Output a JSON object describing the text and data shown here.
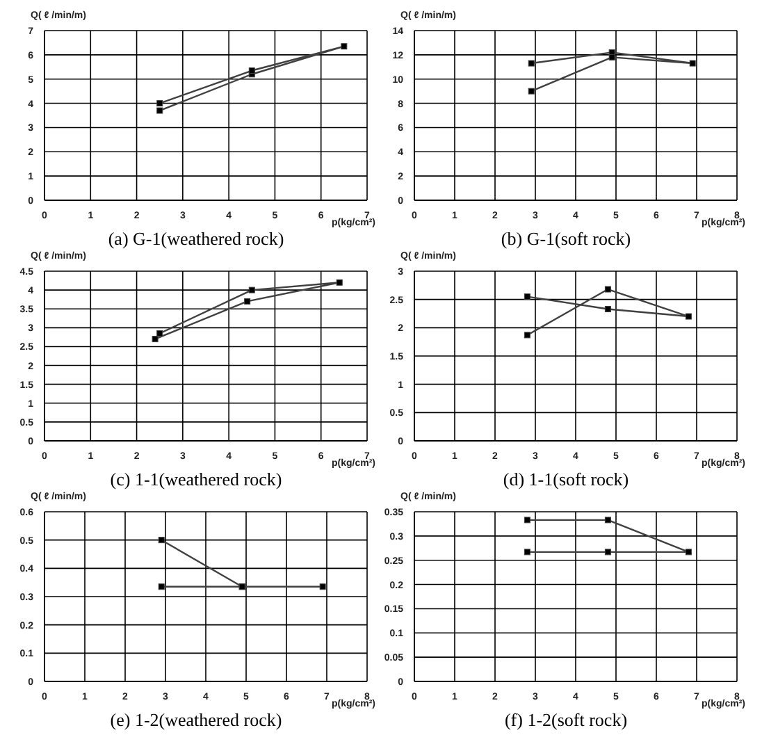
{
  "chart_data": [
    {
      "type": "line",
      "title": "(a)  G-1(weathered rock)",
      "xlabel": "p(kg/cm²)",
      "ylabel": "Q( ℓ /min/m)",
      "xlim": [
        0,
        7
      ],
      "xticks": [
        0,
        1,
        2,
        3,
        4,
        5,
        6,
        7
      ],
      "ylim": [
        0,
        7
      ],
      "yticks": [
        0,
        1,
        2,
        3,
        4,
        5,
        6,
        7
      ],
      "grid": true,
      "marker": "square",
      "line_style": "solid",
      "series": [
        {
          "color": "#404040",
          "x": [
            2.5,
            4.5,
            6.5,
            4.5,
            2.5
          ],
          "values": [
            3.7,
            5.2,
            6.35,
            5.35,
            4.0
          ]
        }
      ]
    },
    {
      "type": "line",
      "title": "(b)  G-1(soft rock)",
      "xlabel": "p(kg/cm²)",
      "ylabel": "Q( ℓ /min/m)",
      "xlim": [
        0,
        8
      ],
      "xticks": [
        0,
        1,
        2,
        3,
        4,
        5,
        6,
        7,
        8
      ],
      "ylim": [
        0,
        14
      ],
      "yticks": [
        0,
        2,
        4,
        6,
        8,
        10,
        12,
        14
      ],
      "grid": true,
      "marker": "square",
      "line_style": "solid",
      "series": [
        {
          "color": "#404040",
          "x": [
            2.9,
            4.9,
            6.9,
            4.9,
            2.9
          ],
          "values": [
            11.3,
            12.2,
            11.3,
            11.8,
            9.0
          ]
        }
      ]
    },
    {
      "type": "line",
      "title": "(c)  1-1(weathered rock)",
      "xlabel": "p(kg/cm²)",
      "ylabel": "Q( ℓ /min/m)",
      "xlim": [
        0,
        7
      ],
      "xticks": [
        0,
        1,
        2,
        3,
        4,
        5,
        6,
        7
      ],
      "ylim": [
        0,
        4.5
      ],
      "yticks": [
        0,
        0.5,
        1,
        1.5,
        2,
        2.5,
        3,
        3.5,
        4,
        4.5
      ],
      "grid": true,
      "marker": "square",
      "line_style": "solid",
      "series": [
        {
          "color": "#404040",
          "x": [
            2.4,
            4.4,
            6.4,
            4.5,
            2.5
          ],
          "values": [
            2.7,
            3.7,
            4.2,
            4.0,
            2.85
          ]
        }
      ]
    },
    {
      "type": "line",
      "title": "(d)  1-1(soft rock)",
      "xlabel": "p(kg/cm²)",
      "ylabel": "Q( ℓ /min/m)",
      "xlim": [
        0,
        8
      ],
      "xticks": [
        0,
        1,
        2,
        3,
        4,
        5,
        6,
        7,
        8
      ],
      "ylim": [
        0,
        3
      ],
      "yticks": [
        0,
        0.5,
        1,
        1.5,
        2,
        2.5,
        3
      ],
      "grid": true,
      "marker": "square",
      "line_style": "solid",
      "series": [
        {
          "color": "#404040",
          "x": [
            2.8,
            4.8,
            6.8,
            4.8,
            2.8
          ],
          "values": [
            1.87,
            2.68,
            2.2,
            2.33,
            2.55
          ]
        }
      ]
    },
    {
      "type": "line",
      "title": "(e)  1-2(weathered rock)",
      "xlabel": "p(kg/cm²)",
      "ylabel": "Q( ℓ /min/m)",
      "xlim": [
        0,
        8
      ],
      "xticks": [
        0,
        1,
        2,
        3,
        4,
        5,
        6,
        7,
        8
      ],
      "ylim": [
        0,
        0.6
      ],
      "yticks": [
        0,
        0.1,
        0.2,
        0.3,
        0.4,
        0.5,
        0.6
      ],
      "grid": true,
      "marker": "square",
      "line_style": "solid",
      "series": [
        {
          "color": "#404040",
          "x": [
            2.9,
            4.9,
            6.9,
            4.9,
            2.9
          ],
          "values": [
            0.5,
            0.335,
            0.335,
            0.335,
            0.335
          ]
        }
      ]
    },
    {
      "type": "line",
      "title": "(f)  1-2(soft rock)",
      "xlabel": "p(kg/cm²)",
      "ylabel": "Q( ℓ /min/m)",
      "xlim": [
        0,
        8
      ],
      "xticks": [
        0,
        1,
        2,
        3,
        4,
        5,
        6,
        7,
        8
      ],
      "ylim": [
        0,
        0.35
      ],
      "yticks": [
        0,
        0.05,
        0.1,
        0.15,
        0.2,
        0.25,
        0.3,
        0.35
      ],
      "grid": true,
      "marker": "square",
      "line_style": "solid",
      "series": [
        {
          "color": "#404040",
          "x": [
            2.8,
            4.8,
            6.8,
            4.8,
            2.8
          ],
          "values": [
            0.333,
            0.333,
            0.267,
            0.267,
            0.267
          ]
        }
      ]
    }
  ]
}
